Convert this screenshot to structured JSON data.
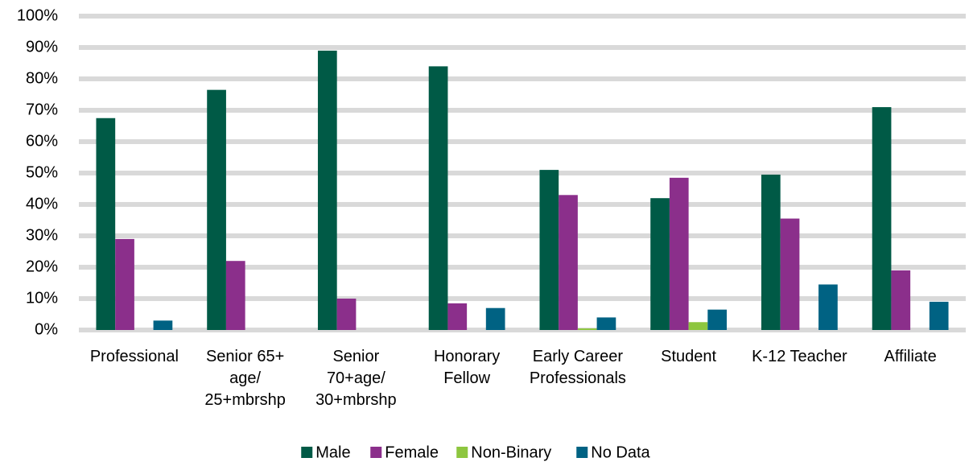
{
  "chart_data": {
    "type": "bar",
    "categories": [
      "Professional",
      "Senior 65+ age/ 25+mbrshp",
      "Senior 70+age/ 30+mbrshp",
      "Honorary Fellow",
      "Early Career Professionals",
      "Student",
      "K-12 Teacher",
      "Affiliate"
    ],
    "series": [
      {
        "name": "Male",
        "color": "#005a46",
        "values": [
          67.5,
          76.5,
          89,
          84,
          51,
          42,
          49.5,
          71
        ]
      },
      {
        "name": "Female",
        "color": "#8b2f8b",
        "values": [
          29,
          22,
          10,
          8.5,
          43,
          48.5,
          35.5,
          19
        ]
      },
      {
        "name": "Non-Binary",
        "color": "#8dc63f",
        "values": [
          0,
          0,
          0,
          0,
          0.5,
          2.5,
          0,
          0
        ]
      },
      {
        "name": "No Data",
        "color": "#006283",
        "values": [
          3,
          0,
          0,
          7,
          4,
          6.5,
          14.5,
          9
        ]
      }
    ],
    "ylim": [
      0,
      100
    ],
    "yticks": [
      {
        "value": 0,
        "label": "0%"
      },
      {
        "value": 10,
        "label": "10%"
      },
      {
        "value": 20,
        "label": "20%"
      },
      {
        "value": 30,
        "label": "30%"
      },
      {
        "value": 40,
        "label": "40%"
      },
      {
        "value": 50,
        "label": "50%"
      },
      {
        "value": 60,
        "label": "60%"
      },
      {
        "value": 70,
        "label": "70%"
      },
      {
        "value": 80,
        "label": "80%"
      },
      {
        "value": 90,
        "label": "90%"
      },
      {
        "value": 100,
        "label": "100%"
      }
    ],
    "grid": true,
    "legend": "bottom"
  }
}
